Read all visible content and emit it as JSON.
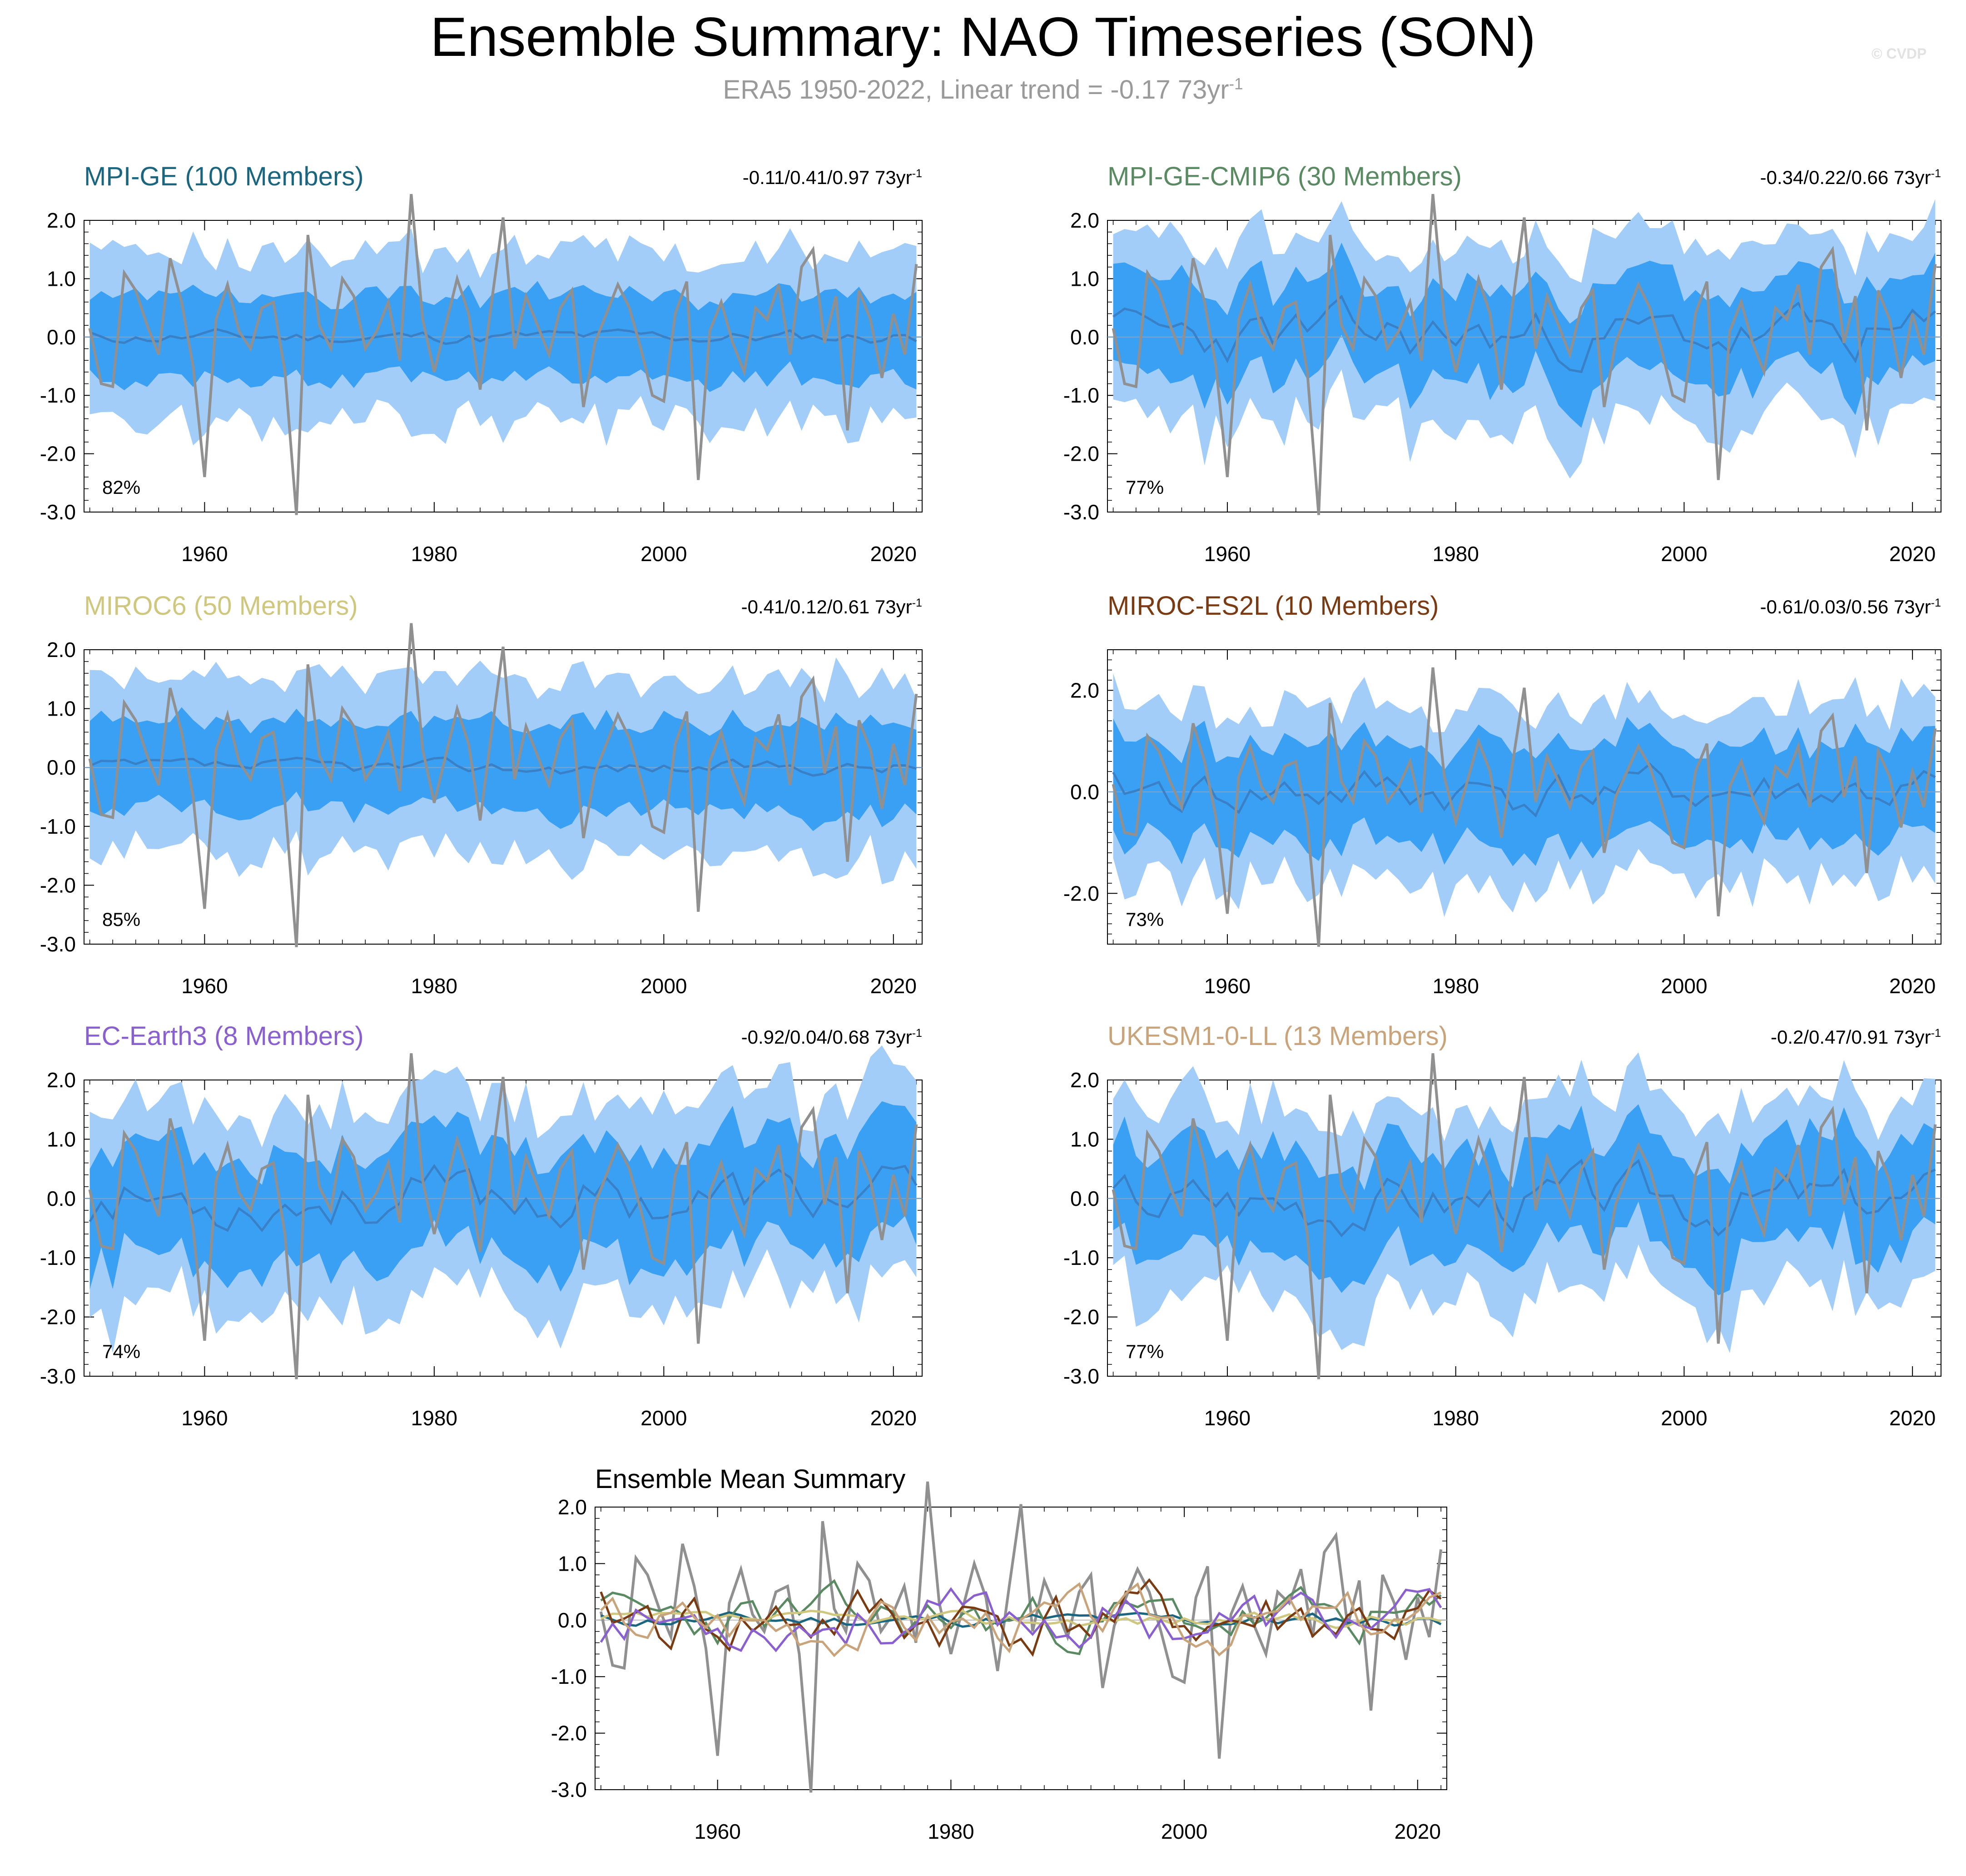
{
  "title": "Ensemble Summary: NAO Timeseries (SON)",
  "subtitle": {
    "text": "ERA5 1950-2022, Linear trend = -0.17 73yr",
    "exponent": "-1"
  },
  "watermark": "© CVDP",
  "colors": {
    "outer_band": "#a3cdf9",
    "inner_band": "#3aa0f4",
    "ensemble_mean": "#3a80c6",
    "observed": "#909090",
    "frame": "#000000"
  },
  "panels": [
    {
      "name": "mpi-ge",
      "title": "MPI-GE (100 Members)",
      "title_color": "#1a6680",
      "trend": "-0.11/0.41/0.97 73yr",
      "trend_exp": "-1",
      "pct": "82%",
      "ylim": [
        -3.0,
        2.0
      ],
      "yticks": [
        "2.0",
        "1.0",
        "0.0",
        "-1.0",
        "-2.0",
        "-3.0"
      ],
      "ytick_values": [
        2,
        1,
        0,
        -1,
        -2,
        -3
      ],
      "xticks": [
        "1960",
        "1980",
        "2000",
        "2020"
      ],
      "seed": 11,
      "spread": 0.75
    },
    {
      "name": "mpi-ge-cmip6",
      "title": "MPI-GE-CMIP6 (30 Members)",
      "title_color": "#5a8a62",
      "trend": "-0.34/0.22/0.66 73yr",
      "trend_exp": "-1",
      "pct": "77%",
      "ylim": [
        -3.0,
        2.0
      ],
      "yticks": [
        "2.0",
        "1.0",
        "0.0",
        "-1.0",
        "-2.0",
        "-3.0"
      ],
      "ytick_values": [
        2,
        1,
        0,
        -1,
        -2,
        -3
      ],
      "xticks": [
        "1960",
        "1980",
        "2000",
        "2020"
      ],
      "seed": 23,
      "spread": 0.85
    },
    {
      "name": "miroc6",
      "title": "MIROC6 (50 Members)",
      "title_color": "#cfc77e",
      "trend": "-0.41/0.12/0.61 73yr",
      "trend_exp": "-1",
      "pct": "85%",
      "ylim": [
        -3.0,
        2.0
      ],
      "yticks": [
        "2.0",
        "1.0",
        "0.0",
        "-1.0",
        "-2.0",
        "-3.0"
      ],
      "ytick_values": [
        2,
        1,
        0,
        -1,
        -2,
        -3
      ],
      "xticks": [
        "1960",
        "1980",
        "2000",
        "2020"
      ],
      "seed": 37,
      "spread": 0.8
    },
    {
      "name": "miroc-es2l",
      "title": "MIROC-ES2L (10 Members)",
      "title_color": "#7a3a12",
      "trend": "-0.61/0.03/0.56 73yr",
      "trend_exp": "-1",
      "pct": "73%",
      "ylim": [
        -3.0,
        2.8
      ],
      "yticks": [
        "2.0",
        "0.0",
        "-2.0"
      ],
      "ytick_values": [
        2,
        0,
        -2
      ],
      "xticks": [
        "1960",
        "1980",
        "2000",
        "2020"
      ],
      "seed": 41,
      "spread": 1.0
    },
    {
      "name": "ec-earth3",
      "title": "EC-Earth3 (8 Members)",
      "title_color": "#8a60d0",
      "trend": "-0.92/0.04/0.68 73yr",
      "trend_exp": "-1",
      "pct": "74%",
      "ylim": [
        -3.0,
        2.0
      ],
      "yticks": [
        "2.0",
        "1.0",
        "0.0",
        "-1.0",
        "-2.0",
        "-3.0"
      ],
      "ytick_values": [
        2,
        1,
        0,
        -1,
        -2,
        -3
      ],
      "xticks": [
        "1960",
        "1980",
        "2000",
        "2020"
      ],
      "seed": 53,
      "spread": 1.0
    },
    {
      "name": "ukesm1-0-ll",
      "title": "UKESM1-0-LL (13 Members)",
      "title_color": "#c9a47a",
      "trend": "-0.2/0.47/0.91 73yr",
      "trend_exp": "-1",
      "pct": "77%",
      "ylim": [
        -3.0,
        2.0
      ],
      "yticks": [
        "2.0",
        "1.0",
        "0.0",
        "-1.0",
        "-2.0",
        "-3.0"
      ],
      "ytick_values": [
        2,
        1,
        0,
        -1,
        -2,
        -3
      ],
      "xticks": [
        "1960",
        "1980",
        "2000",
        "2020"
      ],
      "seed": 67,
      "spread": 0.95
    }
  ],
  "summary": {
    "title": "Ensemble Mean Summary",
    "ylim": [
      -3.0,
      2.0
    ],
    "yticks": [
      "2.0",
      "1.0",
      "0.0",
      "-1.0",
      "-2.0",
      "-3.0"
    ],
    "ytick_values": [
      2,
      1,
      0,
      -1,
      -2,
      -3
    ],
    "xticks": [
      "1960",
      "1980",
      "2000",
      "2020"
    ],
    "series_colors": [
      "#1a6680",
      "#5a8a62",
      "#cfc77e",
      "#7a3a12",
      "#8a60d0",
      "#c9a47a"
    ]
  },
  "chart_data": {
    "type": "line",
    "x_range": [
      1950,
      2022
    ],
    "observed_name": "ERA5",
    "observed_values": [
      0.15,
      -0.8,
      -0.85,
      1.1,
      0.8,
      0.2,
      -0.3,
      1.35,
      0.6,
      -0.5,
      -2.4,
      0.3,
      0.9,
      0.1,
      -0.2,
      0.5,
      0.6,
      -0.6,
      -3.05,
      1.75,
      0.2,
      -0.2,
      1.0,
      0.7,
      -0.2,
      0.1,
      0.6,
      -0.4,
      2.45,
      0.3,
      -0.6,
      0.2,
      1.0,
      0.4,
      -0.9,
      0.6,
      2.05,
      -0.2,
      0.7,
      0.2,
      -0.3,
      0.5,
      0.8,
      -1.2,
      -0.1,
      0.4,
      0.9,
      0.5,
      -0.2,
      -1.0,
      -1.1,
      0.4,
      0.95,
      -2.45,
      0.1,
      0.6,
      -0.1,
      -0.6,
      0.5,
      0.3,
      0.9,
      -0.3,
      1.2,
      1.5,
      -0.1,
      0.7,
      -1.6,
      0.8,
      0.3,
      -0.7,
      0.4,
      -0.3,
      1.25
    ]
  }
}
